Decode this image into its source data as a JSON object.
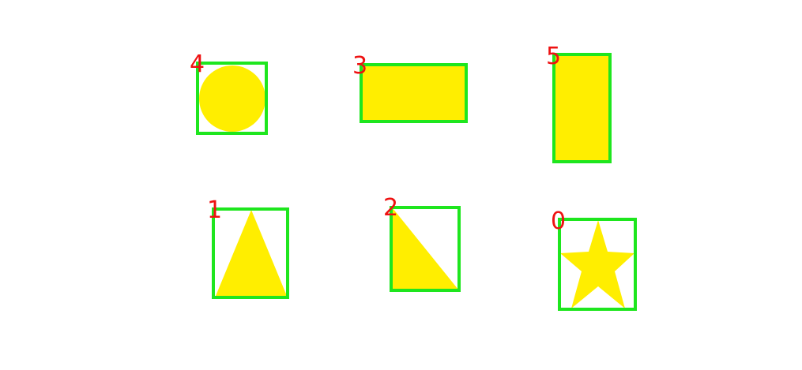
{
  "colors": {
    "background": "#ffffff",
    "shape_fill": "#ffee00",
    "box_stroke": "#1ee61e",
    "label_color": "#ee1111"
  },
  "shapes": [
    {
      "id": "4",
      "shape": "circle",
      "label": "4"
    },
    {
      "id": "3",
      "shape": "rectangle",
      "label": "3"
    },
    {
      "id": "5",
      "shape": "rectangle",
      "label": "5"
    },
    {
      "id": "1",
      "shape": "triangle",
      "label": "1"
    },
    {
      "id": "2",
      "shape": "right-triangle",
      "label": "2"
    },
    {
      "id": "0",
      "shape": "star",
      "label": "0"
    }
  ]
}
